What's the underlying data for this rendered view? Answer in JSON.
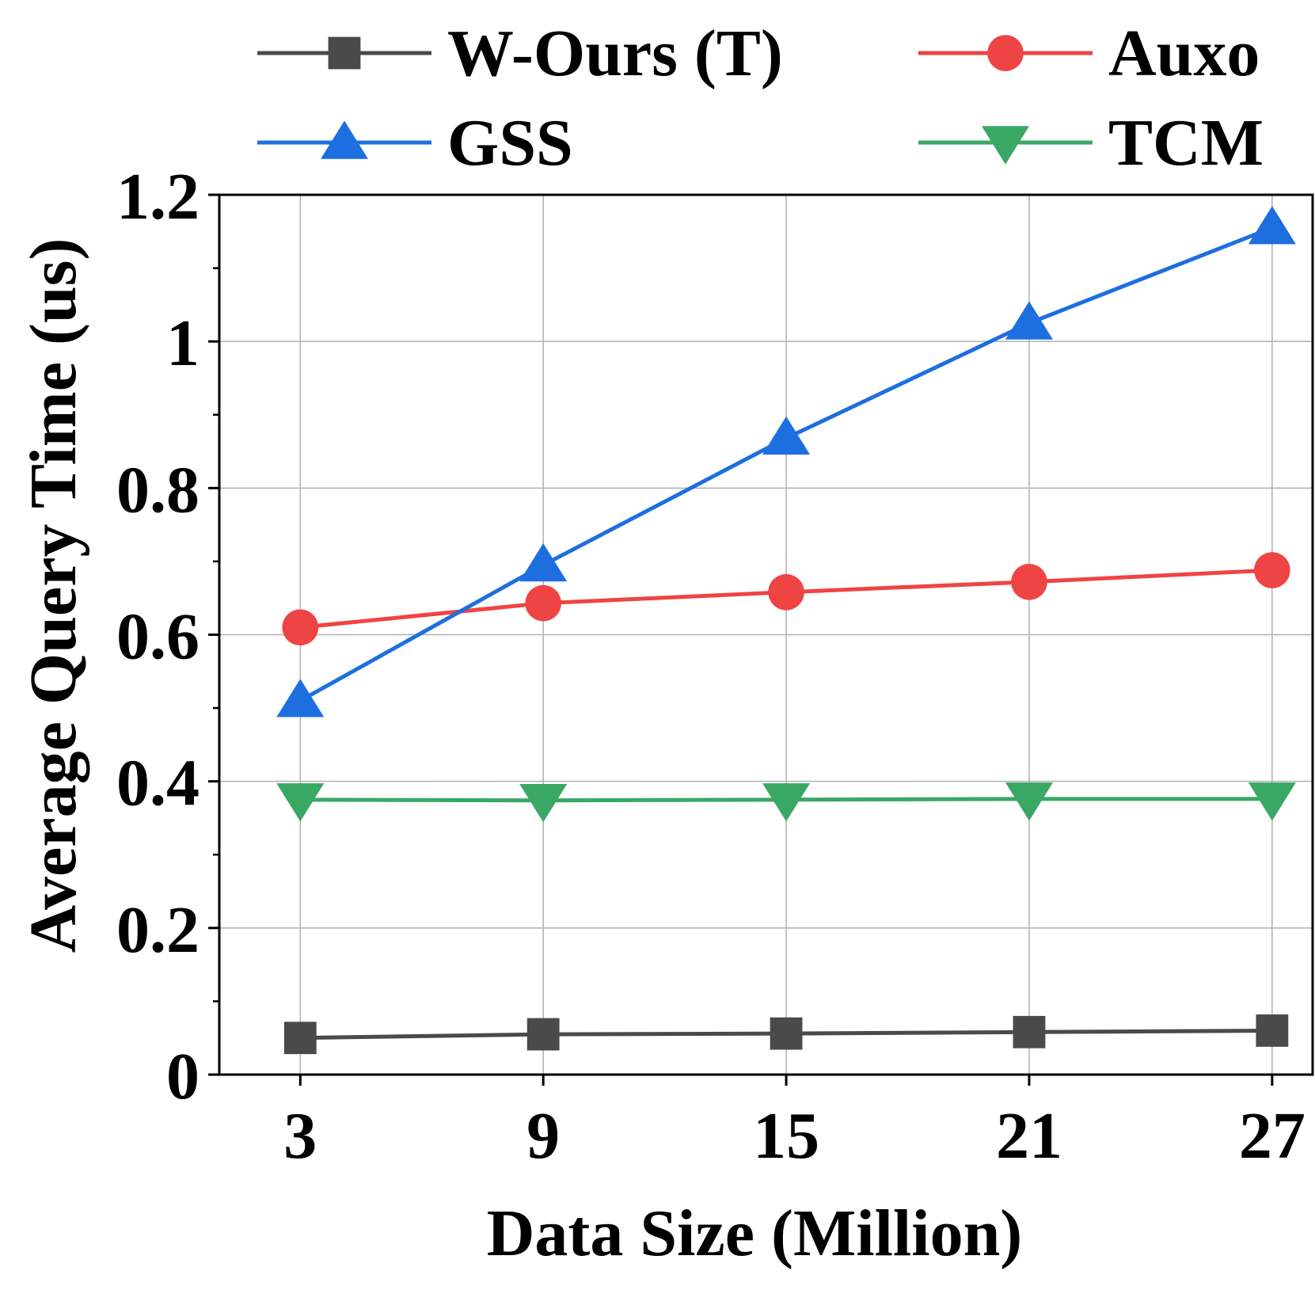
{
  "chart_data": {
    "type": "line",
    "xlabel": "Data Size (Million)",
    "ylabel": "Average Query Time (us)",
    "x": [
      3,
      9,
      15,
      21,
      27
    ],
    "xlim": [
      1,
      28
    ],
    "ylim": [
      0,
      1.2
    ],
    "x_ticks": [
      "3",
      "9",
      "15",
      "21",
      "27"
    ],
    "y_ticks": [
      {
        "value": 0,
        "label": "0"
      },
      {
        "value": 0.2,
        "label": "0.2"
      },
      {
        "value": 0.4,
        "label": "0.4"
      },
      {
        "value": 0.6,
        "label": "0.6"
      },
      {
        "value": 0.8,
        "label": "0.8"
      },
      {
        "value": 1.0,
        "label": "1"
      },
      {
        "value": 1.2,
        "label": "1.2"
      }
    ],
    "y_minor_step": 0.1,
    "grid": true,
    "legend_position": "top, outside plot, 2 columns",
    "series": [
      {
        "name": "W-Ours (T)",
        "color": "#4a4a4a",
        "marker": "square",
        "values": [
          0.05,
          0.055,
          0.056,
          0.058,
          0.06
        ]
      },
      {
        "name": "Auxo",
        "color": "#ef4444",
        "marker": "circle",
        "values": [
          0.61,
          0.643,
          0.658,
          0.672,
          0.688
        ]
      },
      {
        "name": "GSS",
        "color": "#1d6fe0",
        "marker": "triangle-up",
        "values": [
          0.51,
          0.695,
          0.868,
          1.025,
          1.155
        ]
      },
      {
        "name": "TCM",
        "color": "#3aa865",
        "marker": "triangle-down",
        "values": [
          0.375,
          0.374,
          0.375,
          0.376,
          0.376
        ]
      }
    ]
  }
}
